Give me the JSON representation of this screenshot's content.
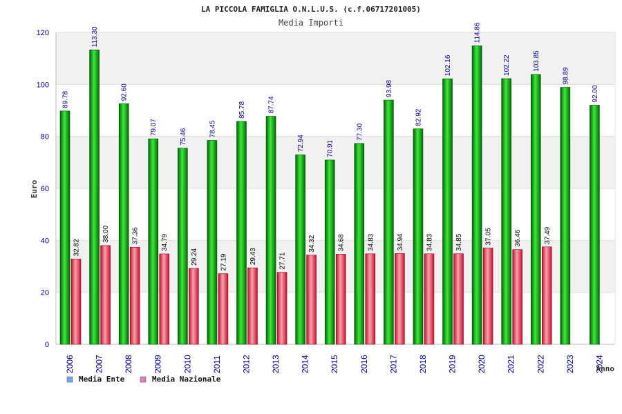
{
  "chart_data": {
    "type": "bar",
    "title": "LA PICCOLA FAMIGLIA O.N.L.U.S. (c.f.06717201005)",
    "subtitle": "Media Importi",
    "xlabel": "Anno",
    "ylabel": "Euro",
    "ylim": [
      0,
      120
    ],
    "yticks": [
      "0",
      "20",
      "40",
      "60",
      "80",
      "100",
      "120"
    ],
    "grid": true,
    "legend_position": "bottom-left",
    "categories": [
      "2006",
      "2007",
      "2008",
      "2009",
      "2010",
      "2011",
      "2012",
      "2013",
      "2014",
      "2015",
      "2016",
      "2017",
      "2018",
      "2019",
      "2020",
      "2021",
      "2022",
      "2023",
      "2024"
    ],
    "series": [
      {
        "name": "Media Ente",
        "legend_color": "#6fa8f0",
        "label_color": "#00008b",
        "values": [
          89.78,
          113.3,
          92.6,
          79.07,
          75.46,
          78.45,
          85.78,
          87.74,
          72.94,
          70.91,
          77.3,
          93.98,
          82.92,
          102.16,
          114.86,
          102.22,
          103.85,
          98.89,
          92.0
        ],
        "labels": [
          "89.78",
          "113.30",
          "92.60",
          "79.07",
          "75.46",
          "78.45",
          "85.78",
          "87.74",
          "72.94",
          "70.91",
          "77.30",
          "93.98",
          "82.92",
          "102.16",
          "114.86",
          "102.22",
          "103.85",
          "98.89",
          "92.00"
        ]
      },
      {
        "name": "Media Nazionale",
        "legend_color": "#e07fb8",
        "label_color": "#000000",
        "values": [
          32.82,
          38.0,
          37.36,
          34.79,
          29.24,
          27.19,
          29.43,
          27.71,
          34.32,
          34.68,
          34.83,
          34.94,
          34.83,
          34.85,
          37.05,
          36.46,
          37.49,
          null,
          null
        ],
        "labels": [
          "32.82",
          "38.00",
          "37.36",
          "34.79",
          "29.24",
          "27.19",
          "29.43",
          "27.71",
          "34.32",
          "34.68",
          "34.83",
          "34.94",
          "34.83",
          "34.85",
          "37.05",
          "36.46",
          "37.49",
          null,
          null
        ]
      }
    ]
  }
}
